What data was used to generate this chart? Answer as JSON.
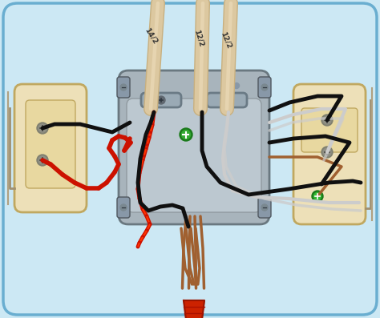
{
  "bg_color": "#cce8f4",
  "bg_border_color": "#6aaed0",
  "box_fc": "#a8b4bc",
  "box_ec": "#6a7880",
  "box_inner_fc": "#bcc8d0",
  "clamp_fc": "#8898a8",
  "clamp_ec": "#505860",
  "cable_tan": "#dcc8a0",
  "cable_tan_dark": "#c8b080",
  "cable_inner_fc": "#e8dcc0",
  "screw_fc": "#7a8890",
  "screw_ec": "#404850",
  "wire_black": "#101010",
  "wire_red": "#cc1100",
  "wire_white": "#cccccc",
  "wire_copper": "#a06030",
  "wire_grey": "#888888",
  "green_screw": "#229922",
  "outlet_fc": "#ede0b8",
  "outlet_ec": "#c0a860",
  "outlet_inner_fc": "#e8d8a0",
  "nut_color": "#cc2200",
  "nut_dark": "#991500",
  "labels": [
    "14/2",
    "12/2",
    "12/2"
  ],
  "label_angles": [
    -55,
    -70,
    -60
  ]
}
